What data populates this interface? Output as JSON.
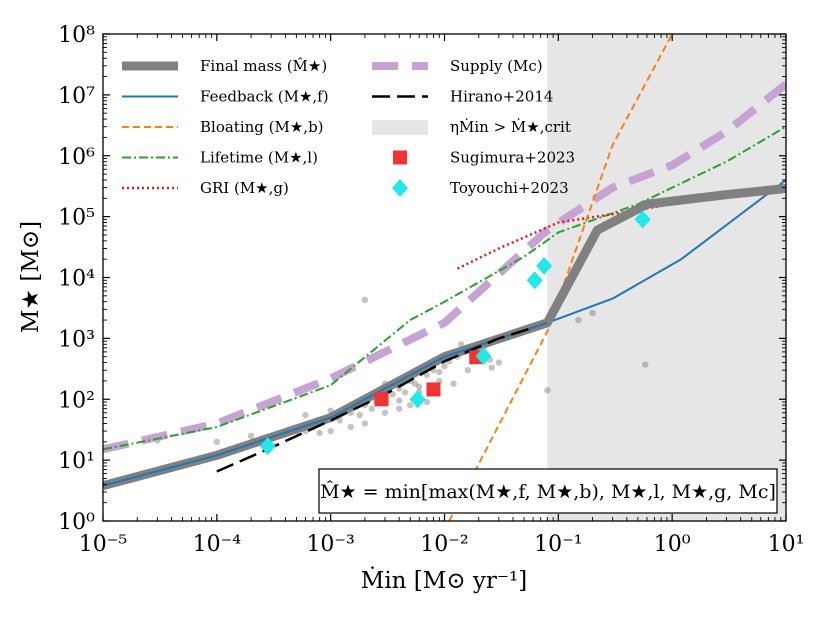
{
  "chart_data": {
    "type": "line",
    "title": "",
    "xlabel": "Ṁin [M⊙ yr⁻¹]",
    "ylabel": "M★ [M⊙]",
    "xscale": "log",
    "yscale": "log",
    "xlim": [
      1e-05,
      10
    ],
    "ylim": [
      1,
      100000000.0
    ],
    "x_ticks": [
      "10⁻⁵",
      "10⁻⁴",
      "10⁻³",
      "10⁻²",
      "10⁻¹",
      "10⁰",
      "10¹"
    ],
    "y_ticks": [
      "10⁰",
      "10¹",
      "10²",
      "10³",
      "10⁴",
      "10⁵",
      "10⁶",
      "10⁷",
      "10⁸"
    ],
    "shaded_region": {
      "label": "ηṀin > Ṁ★,crit",
      "x_from": 0.08,
      "x_to": 10,
      "color": "#e6e6e6"
    },
    "series": [
      {
        "name": "Supply (Mc)",
        "color": "#c5a3d2",
        "style": "dashed-thick",
        "points": [
          [
            1e-05,
            15
          ],
          [
            0.0001,
            40
          ],
          [
            0.001,
            220
          ],
          [
            0.01,
            1800
          ],
          [
            0.08,
            60000.0
          ],
          [
            0.3,
            300000.0
          ],
          [
            1,
            700000.0
          ],
          [
            3,
            2500000.0
          ],
          [
            10,
            15000000.0
          ]
        ]
      },
      {
        "name": "Lifetime (M★,l)",
        "color": "#2ca02c",
        "style": "dashdot",
        "points": [
          [
            1e-05,
            15
          ],
          [
            0.0001,
            35
          ],
          [
            0.001,
            170
          ],
          [
            0.005,
            2000
          ],
          [
            0.01,
            4000
          ],
          [
            0.05,
            22000.0
          ],
          [
            0.1,
            55000.0
          ],
          [
            0.5,
            160000.0
          ],
          [
            1,
            300000.0
          ],
          [
            3,
            800000.0
          ],
          [
            10,
            3000000.0
          ]
        ]
      },
      {
        "name": "GRI (M★,g)",
        "color": "#e41a1c",
        "style": "dotted",
        "points": [
          [
            0.013,
            14000.0
          ],
          [
            0.03,
            30000.0
          ],
          [
            0.1,
            80000.0
          ],
          [
            0.3,
            110000.0
          ],
          [
            1,
            160000.0
          ],
          [
            3,
            220000.0
          ],
          [
            10,
            300000.0
          ]
        ]
      },
      {
        "name": "Bloating (M★,b)",
        "color": "#ff7f0e",
        "style": "dashed",
        "points": [
          [
            0.011,
            1
          ],
          [
            0.08,
            1300
          ],
          [
            0.3,
            1500000.0
          ],
          [
            1,
            100000000.0
          ]
        ]
      },
      {
        "name": "Feedback (M★,f)",
        "color": "#1f77b4",
        "style": "solid",
        "points": [
          [
            1e-05,
            3.8
          ],
          [
            0.0001,
            12
          ],
          [
            0.001,
            50
          ],
          [
            0.01,
            500
          ],
          [
            0.08,
            1800
          ],
          [
            0.3,
            4500
          ],
          [
            1.2,
            20000.0
          ],
          [
            10,
            400000.0
          ]
        ]
      },
      {
        "name": "Final mass (M̂★)",
        "color": "#808080",
        "style": "solid-thick",
        "points": [
          [
            1e-05,
            3.8
          ],
          [
            0.0001,
            12
          ],
          [
            0.001,
            50
          ],
          [
            0.01,
            500
          ],
          [
            0.08,
            1800
          ],
          [
            0.22,
            60000.0
          ],
          [
            0.6,
            160000.0
          ],
          [
            1,
            180000.0
          ],
          [
            3,
            230000.0
          ],
          [
            10,
            290000.0
          ]
        ]
      },
      {
        "name": "Hirano+2014",
        "color": "#000000",
        "style": "longdash",
        "points": [
          [
            0.0001,
            6.5
          ],
          [
            0.0003,
            16
          ],
          [
            0.001,
            45
          ],
          [
            0.003,
            120
          ],
          [
            0.01,
            420
          ],
          [
            0.03,
            1000
          ],
          [
            0.06,
            1500
          ]
        ]
      }
    ],
    "markers": [
      {
        "name": "Sugimura+2023",
        "color": "#f03333",
        "shape": "square",
        "points": [
          [
            0.0028,
            100
          ],
          [
            0.008,
            145
          ],
          [
            0.019,
            490
          ]
        ]
      },
      {
        "name": "Toyouchi+2023",
        "color": "#22e8e8",
        "shape": "diamond",
        "points": [
          [
            0.00028,
            17
          ],
          [
            0.0058,
            100
          ],
          [
            0.022,
            510
          ],
          [
            0.062,
            9000
          ],
          [
            0.075,
            15500.0
          ],
          [
            0.55,
            90000.0
          ]
        ]
      }
    ],
    "scatter_background": {
      "color": "#555555",
      "opacity": 0.35,
      "points": [
        [
          0.0001,
          20
        ],
        [
          0.0002,
          25
        ],
        [
          0.0003,
          23
        ],
        [
          0.0004,
          27
        ],
        [
          0.0005,
          30
        ],
        [
          0.0006,
          30
        ],
        [
          0.0007,
          35
        ],
        [
          0.0008,
          40
        ],
        [
          0.001,
          50
        ],
        [
          0.0012,
          45
        ],
        [
          0.0015,
          60
        ],
        [
          0.0018,
          55
        ],
        [
          0.002,
          80
        ],
        [
          0.0023,
          70
        ],
        [
          0.0025,
          90
        ],
        [
          0.003,
          100
        ],
        [
          0.0035,
          120
        ],
        [
          0.004,
          150
        ],
        [
          0.0045,
          130
        ],
        [
          0.005,
          200
        ],
        [
          0.0055,
          180
        ],
        [
          0.006,
          160
        ],
        [
          0.007,
          250
        ],
        [
          0.008,
          300
        ],
        [
          0.009,
          280
        ],
        [
          0.01,
          350
        ],
        [
          0.011,
          420
        ],
        [
          0.013,
          500
        ],
        [
          0.015,
          600
        ],
        [
          0.02,
          550
        ],
        [
          0.025,
          450
        ],
        [
          0.03,
          400
        ],
        [
          0.0006,
          55
        ],
        [
          0.001,
          65
        ],
        [
          0.0015,
          35
        ],
        [
          0.002,
          40
        ],
        [
          0.003,
          60
        ],
        [
          0.004,
          70
        ],
        [
          0.005,
          80
        ],
        [
          0.007,
          90
        ],
        [
          0.002,
          4300
        ],
        [
          0.08,
          140
        ],
        [
          0.15,
          2000
        ],
        [
          0.2,
          2600
        ],
        [
          0.58,
          370
        ],
        [
          0.001,
          30
        ],
        [
          0.003,
          180
        ],
        [
          0.006,
          130
        ],
        [
          0.009,
          200
        ],
        [
          0.012,
          180
        ],
        [
          0.016,
          300
        ],
        [
          0.022,
          700
        ],
        [
          3e-05,
          21
        ],
        [
          0.0008,
          28
        ],
        [
          0.004,
          95
        ],
        [
          0.005,
          250
        ],
        [
          0.014,
          800
        ],
        [
          0.026,
          330
        ]
      ]
    },
    "legend": {
      "placement": "top-left",
      "left_column": [
        {
          "label": "Final mass (M̂★)",
          "style": "solid-thick",
          "color": "#808080"
        },
        {
          "label": "Feedback (M★,f)",
          "style": "solid",
          "color": "#1f77b4"
        },
        {
          "label": "Bloating (M★,b)",
          "style": "dashed",
          "color": "#ff7f0e"
        },
        {
          "label": "Lifetime (M★,l)",
          "style": "dashdot",
          "color": "#2ca02c"
        },
        {
          "label": "GRI (M★,g)",
          "style": "dotted",
          "color": "#e41a1c"
        }
      ],
      "right_column": [
        {
          "label": "Supply (Mc)",
          "style": "dashed-thick",
          "color": "#c5a3d2"
        },
        {
          "label": "Hirano+2014",
          "style": "longdash",
          "color": "#000000"
        },
        {
          "label": "ηṀin > Ṁ★,crit",
          "style": "patch",
          "color": "#e6e6e6"
        },
        {
          "label": "Sugimura+2023",
          "style": "square",
          "color": "#f03333"
        },
        {
          "label": "Toyouchi+2023",
          "style": "diamond",
          "color": "#22e8e8"
        }
      ]
    },
    "annotation": "M̂★ = min[max(M★,f, M★,b), M★,l, M★,g, Mc]"
  }
}
